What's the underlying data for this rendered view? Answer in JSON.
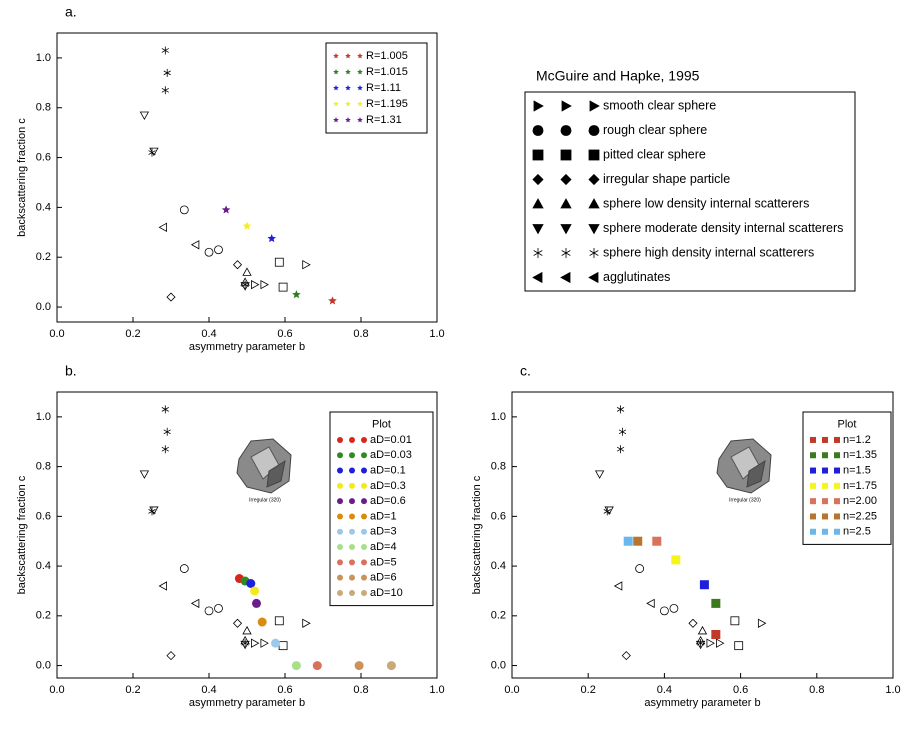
{
  "chart_data": [
    {
      "type": "scatter",
      "panel_label": "a.",
      "xlabel": "asymmetry parameter b",
      "ylabel": "backscattering fraction c",
      "xlim": [
        0,
        1
      ],
      "ylim": [
        -0.06,
        1.1
      ],
      "xticks": [
        {
          "value": 0,
          "label": "0.0"
        },
        0.2,
        0.4,
        0.6,
        0.8,
        {
          "value": 1,
          "label": "1.0"
        }
      ],
      "yticks": [
        {
          "value": 0,
          "label": "0.0"
        },
        0.2,
        0.4,
        0.6,
        0.8,
        {
          "value": 1,
          "label": "1.0"
        }
      ],
      "legend": "upper right",
      "series": [
        {
          "name": "R=1.005",
          "color": "#c0392b",
          "marker": "star5",
          "x": [
            0.725
          ],
          "y": [
            0.025
          ]
        },
        {
          "name": "R=1.015",
          "color": "#2e7d1e",
          "marker": "star5",
          "x": [
            0.63
          ],
          "y": [
            0.05
          ]
        },
        {
          "name": "R=1.11",
          "color": "#1f1fdb",
          "marker": "star5",
          "x": [
            0.565
          ],
          "y": [
            0.275
          ]
        },
        {
          "name": "R=1.195",
          "color": "#f5f01c",
          "marker": "star5",
          "x": [
            0.5
          ],
          "y": [
            0.325
          ]
        },
        {
          "name": "R=1.31",
          "color": "#6a1b8c",
          "marker": "star5",
          "x": [
            0.445
          ],
          "y": [
            0.39
          ]
        }
      ]
    },
    {
      "type": "scatter",
      "panel_label": "b.",
      "xlabel": "asymmetry parameter b",
      "ylabel": "backscattering fraction c",
      "xlim": [
        0,
        1
      ],
      "ylim": [
        -0.05,
        1.1
      ],
      "xticks": [
        {
          "value": 0,
          "label": "0.0"
        },
        0.2,
        0.4,
        0.6,
        0.8,
        {
          "value": 1,
          "label": "1.0"
        }
      ],
      "yticks": [
        {
          "value": 0,
          "label": "0.0"
        },
        0.2,
        0.4,
        0.6,
        0.8,
        {
          "value": 1,
          "label": "1.0"
        }
      ],
      "legend": "upper right",
      "legend_title": "Plot",
      "annotation": "Irregular (320)",
      "series": [
        {
          "name": "aD=0.01",
          "color": "#d9261c",
          "marker": "circle",
          "x": [
            0.48
          ],
          "y": [
            0.35
          ]
        },
        {
          "name": "aD=0.03",
          "color": "#2e8b22",
          "marker": "circle",
          "x": [
            0.495
          ],
          "y": [
            0.34
          ]
        },
        {
          "name": "aD=0.1",
          "color": "#1f1fdb",
          "marker": "circle",
          "x": [
            0.51
          ],
          "y": [
            0.33
          ]
        },
        {
          "name": "aD=0.3",
          "color": "#f2ea1c",
          "marker": "circle",
          "x": [
            0.52
          ],
          "y": [
            0.3
          ]
        },
        {
          "name": "aD=0.6",
          "color": "#6a1b8c",
          "marker": "circle",
          "x": [
            0.525
          ],
          "y": [
            0.25
          ]
        },
        {
          "name": "aD=1",
          "color": "#d98c0f",
          "marker": "circle",
          "x": [
            0.54
          ],
          "y": [
            0.175
          ]
        },
        {
          "name": "aD=3",
          "color": "#9cc8ea",
          "marker": "circle",
          "x": [
            0.575
          ],
          "y": [
            0.09
          ]
        },
        {
          "name": "aD=4",
          "color": "#a8e08a",
          "marker": "circle",
          "x": [
            0.63
          ],
          "y": [
            0.0
          ]
        },
        {
          "name": "aD=5",
          "color": "#d9725a",
          "marker": "circle",
          "x": [
            0.685
          ],
          "y": [
            0.0
          ]
        },
        {
          "name": "aD=6",
          "color": "#c9935a",
          "marker": "circle",
          "x": [
            0.795
          ],
          "y": [
            0.0
          ]
        },
        {
          "name": "aD=10",
          "color": "#c9a87a",
          "marker": "circle",
          "x": [
            0.88
          ],
          "y": [
            0.0
          ]
        }
      ]
    },
    {
      "type": "scatter",
      "panel_label": "c.",
      "xlabel": "asymmetry parameter b",
      "ylabel": "backscattering fraction c",
      "xlim": [
        0,
        1
      ],
      "ylim": [
        -0.05,
        1.1
      ],
      "xticks": [
        {
          "value": 0,
          "label": "0.0"
        },
        0.2,
        0.4,
        0.6,
        0.8,
        {
          "value": 1,
          "label": "1.0"
        }
      ],
      "yticks": [
        {
          "value": 0,
          "label": "0.0"
        },
        0.2,
        0.4,
        0.6,
        0.8,
        {
          "value": 1,
          "label": "1.0"
        }
      ],
      "legend": "upper right",
      "legend_title": "Plot",
      "annotation": "Irregular (320)",
      "series": [
        {
          "name": "n=1.2",
          "color": "#c0392b",
          "marker": "square",
          "x": [
            0.535
          ],
          "y": [
            0.125
          ]
        },
        {
          "name": "n=1.35",
          "color": "#3d7a1e",
          "marker": "square",
          "x": [
            0.535
          ],
          "y": [
            0.25
          ]
        },
        {
          "name": "n=1.5",
          "color": "#1f1fdb",
          "marker": "square",
          "x": [
            0.505
          ],
          "y": [
            0.325
          ]
        },
        {
          "name": "n=1.75",
          "color": "#f5f51c",
          "marker": "square",
          "x": [
            0.43
          ],
          "y": [
            0.425
          ]
        },
        {
          "name": "n=2.00",
          "color": "#d9725a",
          "marker": "square",
          "x": [
            0.38
          ],
          "y": [
            0.5
          ]
        },
        {
          "name": "n=2.25",
          "color": "#b8752d",
          "marker": "square",
          "x": [
            0.33
          ],
          "y": [
            0.5
          ]
        },
        {
          "name": "n=2.5",
          "color": "#6ab7ee",
          "marker": "square",
          "x": [
            0.305
          ],
          "y": [
            0.5
          ]
        }
      ]
    }
  ],
  "reference": {
    "title": "McGuire and Hapke, 1995",
    "color": "#000",
    "series": [
      {
        "name": "smooth clear sphere",
        "marker": "triangle-right",
        "x": [
          0.52,
          0.545,
          0.655
        ],
        "y": [
          0.09,
          0.09,
          0.17
        ]
      },
      {
        "name": "rough clear sphere",
        "marker": "circle",
        "x": [
          0.335,
          0.4,
          0.425
        ],
        "y": [
          0.39,
          0.22,
          0.23
        ]
      },
      {
        "name": "pitted clear sphere",
        "marker": "square",
        "x": [
          0.585,
          0.595
        ],
        "y": [
          0.18,
          0.08
        ]
      },
      {
        "name": "irregular shape particle",
        "marker": "diamond",
        "x": [
          0.3,
          0.475
        ],
        "y": [
          0.04,
          0.17
        ]
      },
      {
        "name": "sphere low density internal scatterers",
        "marker": "triangle-up",
        "x": [
          0.5,
          0.495
        ],
        "y": [
          0.14,
          0.1
        ]
      },
      {
        "name": "sphere moderate density internal scatterers",
        "marker": "triangle-down",
        "x": [
          0.23,
          0.255,
          0.495
        ],
        "y": [
          0.77,
          0.625,
          0.085
        ]
      },
      {
        "name": "sphere high density internal scatterers",
        "marker": "star6",
        "x": [
          0.285,
          0.29,
          0.285,
          0.25,
          0.495
        ],
        "y": [
          1.03,
          0.94,
          0.87,
          0.62,
          0.09
        ]
      },
      {
        "name": "agglutinates",
        "marker": "triangle-left",
        "x": [
          0.28,
          0.365
        ],
        "y": [
          0.32,
          0.25
        ]
      }
    ]
  }
}
